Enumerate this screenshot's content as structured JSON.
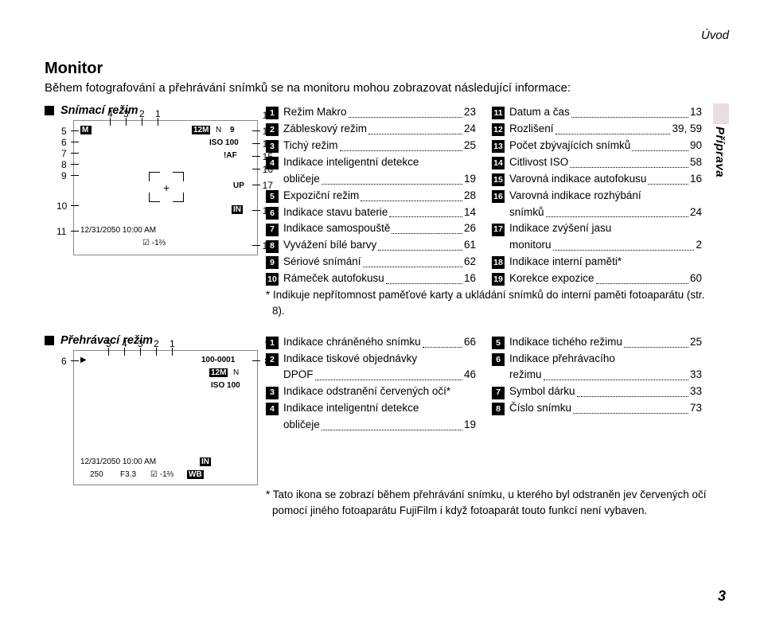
{
  "breadcrumb": "Úvod",
  "title": "Monitor",
  "intro": "Během fotografování a přehrávání snímků se na monitoru mohou zobrazovat následující informace:",
  "shooting": {
    "heading": "Snímací režim",
    "left_nums": [
      "4",
      "3",
      "2",
      "1",
      "5",
      "6",
      "7",
      "8",
      "9",
      "10",
      "11"
    ],
    "right_nums": [
      "12",
      "13",
      "14",
      "15",
      "16",
      "17",
      "18",
      "19"
    ],
    "bottom_text": "12/31/2050  10:00 AM",
    "iso_text": "ISO 100",
    "ev_text": "-1⅔",
    "m12": "12M",
    "n_letter": "N",
    "nine": "9",
    "af": "AF",
    "up": "UP",
    "in": "IN",
    "list": [
      {
        "n": "1",
        "t": "Režim Makro",
        "p": "23"
      },
      {
        "n": "2",
        "t": "Zábleskový režim",
        "p": "24"
      },
      {
        "n": "3",
        "t": "Tichý režim",
        "p": "25"
      },
      {
        "n": "4",
        "t": "Indikace inteligentní detekce",
        "sub": "obličeje",
        "p": "19"
      },
      {
        "n": "5",
        "t": "Expoziční režim",
        "p": "28"
      },
      {
        "n": "6",
        "t": "Indikace stavu baterie",
        "p": "14"
      },
      {
        "n": "7",
        "t": "Indikace samospouště",
        "p": "26"
      },
      {
        "n": "8",
        "t": "Vyvážení bílé barvy",
        "p": "61"
      },
      {
        "n": "9",
        "t": "Sériové snímání",
        "p": "62"
      },
      {
        "n": "10",
        "t": "Rámeček autofokusu",
        "p": "16"
      }
    ],
    "list2": [
      {
        "n": "11",
        "t": "Datum a čas",
        "p": "13"
      },
      {
        "n": "12",
        "t": "Rozlišení",
        "p": "39, 59"
      },
      {
        "n": "13",
        "t": "Počet zbývajících snímků",
        "p": "90"
      },
      {
        "n": "14",
        "t": "Citlivost ISO",
        "p": "58"
      },
      {
        "n": "15",
        "t": "Varovná indikace autofokusu",
        "p": "16"
      },
      {
        "n": "16",
        "t": "Varovná indikace rozhýbání",
        "sub": "snímků",
        "p": "24"
      },
      {
        "n": "17",
        "t": "Indikace zvýšení jasu",
        "sub": "monitoru",
        "p": "2"
      },
      {
        "n": "18",
        "t": "Indikace interní paměti*"
      },
      {
        "n": "19",
        "t": "Korekce expozice",
        "p": "60"
      }
    ],
    "footnote": "* Indikuje nepřítomnost paměťové karty a ukládání snímků do interní paměti fotoaparátu (str. 8)."
  },
  "playback": {
    "heading": "Přehrávací režim",
    "top_nums": [
      "5",
      "4",
      "3",
      "2",
      "1"
    ],
    "right_nums": [
      "7",
      "8"
    ],
    "left_nums": [
      "6"
    ],
    "frame_no": "100-0001",
    "m12": "12M",
    "n_letter": "N",
    "iso_text": "ISO 100",
    "bottom1": "12/31/2050  10:00 AM",
    "bottom2_a": "250",
    "bottom2_b": "F3.3",
    "ev_text": "-1⅔",
    "in": "IN",
    "wb": "WB",
    "list": [
      {
        "n": "1",
        "t": "Indikace chráněného snímku",
        "p": "66"
      },
      {
        "n": "2",
        "t": "Indikace tiskové objednávky",
        "sub": "DPOF",
        "p": "46"
      },
      {
        "n": "3",
        "t": "Indikace odstranění červených očí*"
      },
      {
        "n": "4",
        "t": "Indikace inteligentní detekce",
        "sub": "obličeje",
        "p": "19"
      }
    ],
    "list2": [
      {
        "n": "5",
        "t": "Indikace tichého režimu",
        "p": "25"
      },
      {
        "n": "6",
        "t": "Indikace přehrávacího",
        "sub": "režimu",
        "p": "33"
      },
      {
        "n": "7",
        "t": "Symbol dárku",
        "p": "33"
      },
      {
        "n": "8",
        "t": "Číslo snímku",
        "p": "73"
      }
    ],
    "footnote": "* Tato ikona se zobrazí během přehrávání snímku, u kterého byl odstraněn jev červených očí pomocí jiného fotoaparátu FujiFilm i když fotoaparát touto funkcí není vybaven."
  },
  "sidetab": "Příprava",
  "pagenum": "3"
}
